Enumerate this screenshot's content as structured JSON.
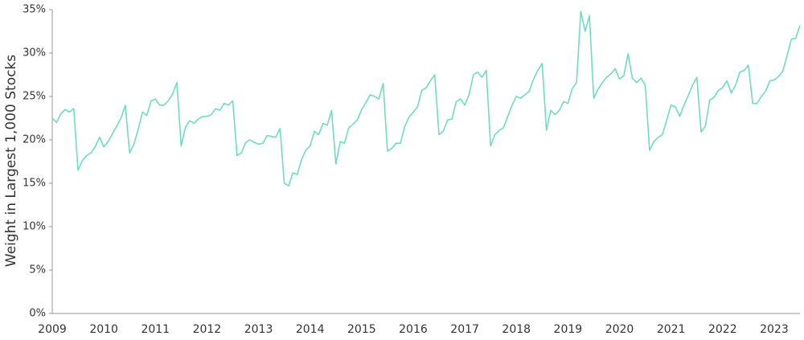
{
  "chart_data": {
    "type": "line",
    "y_label": "Weight in Largest 1,000 Stocks",
    "categories": [
      "2009",
      null,
      null,
      null,
      null,
      null,
      null,
      null,
      null,
      null,
      null,
      null,
      "2010",
      null,
      null,
      null,
      null,
      null,
      null,
      null,
      null,
      null,
      null,
      null,
      "2011",
      null,
      null,
      null,
      null,
      null,
      null,
      null,
      null,
      null,
      null,
      null,
      "2012",
      null,
      null,
      null,
      null,
      null,
      null,
      null,
      null,
      null,
      null,
      null,
      "2013",
      null,
      null,
      null,
      null,
      null,
      null,
      null,
      null,
      null,
      null,
      null,
      "2014",
      null,
      null,
      null,
      null,
      null,
      null,
      null,
      null,
      null,
      null,
      null,
      "2015",
      null,
      null,
      null,
      null,
      null,
      null,
      null,
      null,
      null,
      null,
      null,
      "2016",
      null,
      null,
      null,
      null,
      null,
      null,
      null,
      null,
      null,
      null,
      null,
      "2017",
      null,
      null,
      null,
      null,
      null,
      null,
      null,
      null,
      null,
      null,
      null,
      "2018",
      null,
      null,
      null,
      null,
      null,
      null,
      null,
      null,
      null,
      null,
      null,
      "2019",
      null,
      null,
      null,
      null,
      null,
      null,
      null,
      null,
      null,
      null,
      null,
      "2020",
      null,
      null,
      null,
      null,
      null,
      null,
      null,
      null,
      null,
      null,
      null,
      "2021",
      null,
      null,
      null,
      null,
      null,
      null,
      null,
      null,
      null,
      null,
      null,
      "2022",
      null,
      null,
      null,
      null,
      null,
      null,
      null,
      null,
      null,
      null,
      null,
      "2023",
      null,
      null,
      null,
      null,
      null,
      null
    ],
    "series": [
      {
        "color": "#6fdcc2",
        "values": [
          22.5,
          22.0,
          23.0,
          23.5,
          23.2,
          23.6,
          16.5,
          17.6,
          18.2,
          18.5,
          19.2,
          20.3,
          19.2,
          19.8,
          20.7,
          21.6,
          22.5,
          24.0,
          18.5,
          19.5,
          21.2,
          23.2,
          22.8,
          24.5,
          24.7,
          24.0,
          24.0,
          24.5,
          25.3,
          26.6,
          19.3,
          21.5,
          22.2,
          21.9,
          22.4,
          22.7,
          22.7,
          22.9,
          23.6,
          23.4,
          24.2,
          24.0,
          24.5,
          18.2,
          18.5,
          19.7,
          20.0,
          19.7,
          19.5,
          19.6,
          20.5,
          20.4,
          20.3,
          21.3,
          15.0,
          14.7,
          16.2,
          16.0,
          17.7,
          18.8,
          19.3,
          21.0,
          20.6,
          21.9,
          21.7,
          23.4,
          17.2,
          19.8,
          19.6,
          21.4,
          21.8,
          22.3,
          23.5,
          24.3,
          25.2,
          25.0,
          24.7,
          26.5,
          18.7,
          19.0,
          19.6,
          19.6,
          21.5,
          22.6,
          23.2,
          23.8,
          25.7,
          26.0,
          26.8,
          27.5,
          20.6,
          21.0,
          22.3,
          22.4,
          24.4,
          24.7,
          24.0,
          25.2,
          27.5,
          27.8,
          27.2,
          28.0,
          19.3,
          20.6,
          21.1,
          21.4,
          22.7,
          24.0,
          25.0,
          24.8,
          25.2,
          25.6,
          27.0,
          28.0,
          28.8,
          21.1,
          23.4,
          22.9,
          23.4,
          24.4,
          24.2,
          25.9,
          26.6,
          34.8,
          32.5,
          34.3,
          24.8,
          25.8,
          26.6,
          27.2,
          27.6,
          28.2,
          27.0,
          27.4,
          29.9,
          27.1,
          26.6,
          27.1,
          26.3,
          18.8,
          19.8,
          20.3,
          20.6,
          22.3,
          24.0,
          23.8,
          22.7,
          24.0,
          25.1,
          26.3,
          27.2,
          20.9,
          21.6,
          24.6,
          24.9,
          25.7,
          26.0,
          26.8,
          25.4,
          26.3,
          27.8,
          28.0,
          28.6,
          24.2,
          24.2,
          25.0,
          25.6,
          26.8,
          26.9,
          27.3,
          27.9,
          29.7,
          31.6,
          31.7,
          33.2
        ]
      }
    ],
    "ylim": [
      0,
      35
    ],
    "yticks": [
      {
        "value": 0,
        "label": "0%"
      },
      {
        "value": 5,
        "label": "5%"
      },
      {
        "value": 10,
        "label": "10%"
      },
      {
        "value": 15,
        "label": "15%"
      },
      {
        "value": 20,
        "label": "20%"
      },
      {
        "value": 25,
        "label": "25%"
      },
      {
        "value": 30,
        "label": "30%"
      },
      {
        "value": 35,
        "label": "35%"
      }
    ],
    "grid": false
  }
}
